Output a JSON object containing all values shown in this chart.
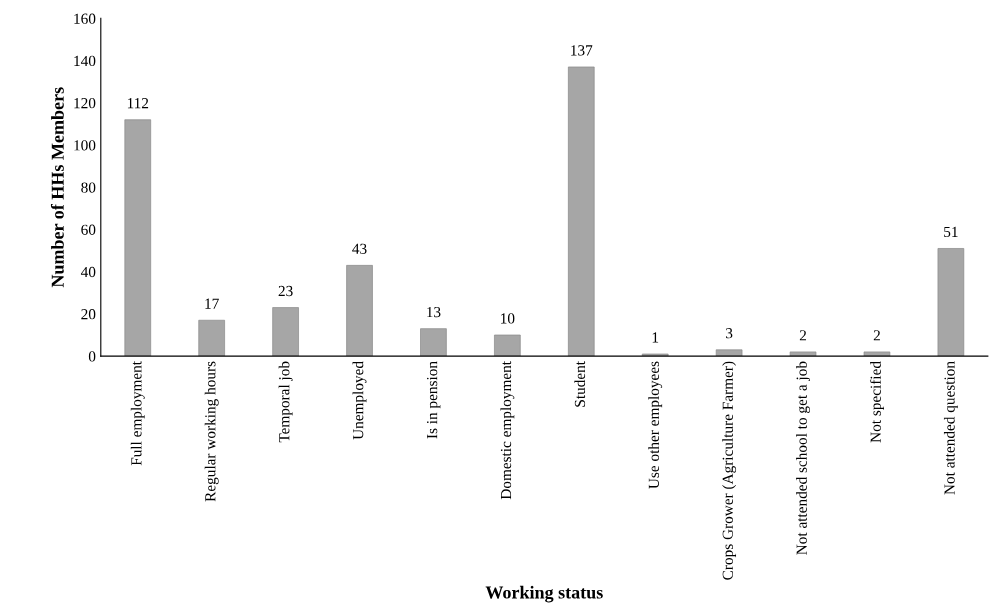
{
  "chart_data": {
    "type": "bar",
    "xlabel": "Working status",
    "ylabel": "Number of HHs Members",
    "categories": [
      "Full employment",
      "Regular working hours",
      "Temporal job",
      "Unemployed",
      "Is in pension",
      "Domestic employment",
      "Student",
      "Use other employees",
      "Crops Grower (Agriculture Farmer)",
      "Not attended school to get a job",
      "Not specified",
      "Not attended question"
    ],
    "values": [
      112,
      17,
      23,
      43,
      13,
      10,
      137,
      1,
      3,
      2,
      2,
      51
    ],
    "color": "#a6a6a6",
    "ylim": [
      0,
      160
    ],
    "yticks": [
      0,
      20,
      40,
      60,
      80,
      100,
      120,
      140,
      160
    ],
    "grid": false,
    "data_labels": true
  }
}
